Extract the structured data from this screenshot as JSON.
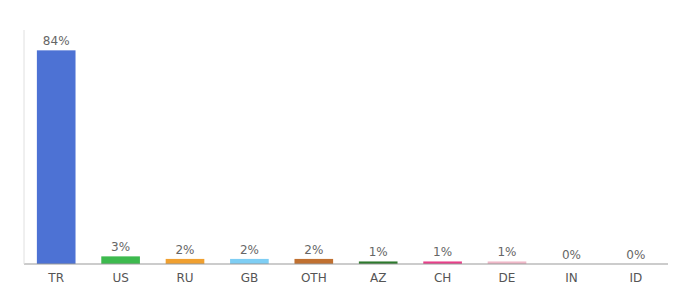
{
  "chart_data": {
    "type": "bar",
    "categories": [
      "TR",
      "US",
      "RU",
      "GB",
      "OTH",
      "AZ",
      "CH",
      "DE",
      "IN",
      "ID"
    ],
    "values": [
      84,
      3,
      2,
      2,
      2,
      1,
      1,
      1,
      0,
      0
    ],
    "value_labels": [
      "84%",
      "3%",
      "2%",
      "2%",
      "2%",
      "1%",
      "1%",
      "1%",
      "0%",
      "0%"
    ],
    "data_labels": true,
    "colors": [
      "#4d72d4",
      "#3dba4e",
      "#f0a030",
      "#7ecef4",
      "#c07030",
      "#2d7a2d",
      "#e8408a",
      "#f0b8c8",
      "#cccccc",
      "#cccccc"
    ],
    "ylim": [
      0,
      92
    ],
    "tick_labels": "x",
    "grid": false
  }
}
